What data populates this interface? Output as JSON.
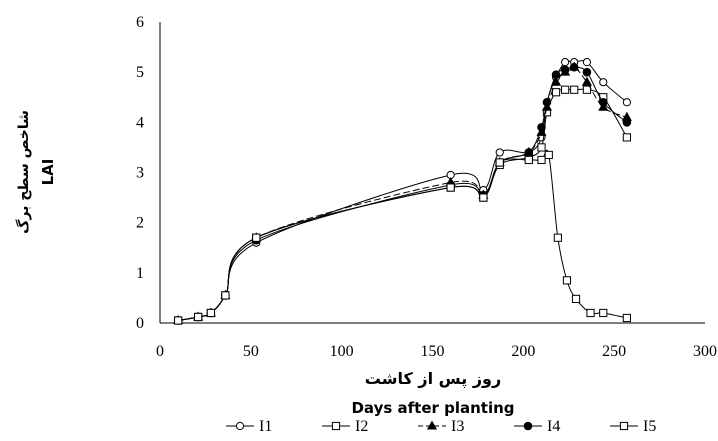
{
  "chart_data": {
    "type": "line",
    "xlabel": "روز پس از کاشت",
    "xlabel_en": "Days after planting",
    "ylabel": "شاخص سطح برگ",
    "ylabel_en": "LAI",
    "xlim": [
      0,
      300
    ],
    "ylim": [
      0,
      6
    ],
    "xticks": [
      "0",
      "50",
      "100",
      "150",
      "200",
      "250",
      "300"
    ],
    "yticks": [
      "0",
      "1",
      "2",
      "3",
      "4",
      "5",
      "6"
    ],
    "grid": false,
    "legend_position": "bottom",
    "series": [
      {
        "name": "I1",
        "marker": "circle-open",
        "dash": "solid",
        "x": [
          10,
          21,
          28,
          36,
          53,
          160,
          178,
          187,
          203,
          210,
          213,
          218,
          223,
          228,
          235,
          244,
          257
        ],
        "y": [
          0.05,
          0.12,
          0.2,
          0.55,
          1.6,
          2.95,
          2.65,
          3.4,
          3.4,
          3.7,
          4.4,
          4.9,
          5.2,
          5.2,
          5.2,
          4.8,
          4.4
        ]
      },
      {
        "name": "I2",
        "marker": "square-open",
        "dash": "solid",
        "x": [
          10,
          21,
          28,
          36,
          53,
          160,
          178,
          187,
          203,
          210,
          213,
          218,
          223,
          228,
          235,
          244,
          257
        ],
        "y": [
          0.05,
          0.12,
          0.2,
          0.55,
          1.7,
          2.7,
          2.5,
          3.15,
          3.3,
          3.5,
          4.2,
          4.6,
          4.65,
          4.65,
          4.65,
          4.5,
          3.7
        ]
      },
      {
        "name": "I3",
        "marker": "triangle-filled",
        "dash": "dashed",
        "x": [
          10,
          21,
          28,
          36,
          53,
          160,
          178,
          187,
          203,
          210,
          213,
          218,
          223,
          228,
          235,
          244,
          257
        ],
        "y": [
          0.05,
          0.12,
          0.2,
          0.55,
          1.7,
          2.8,
          2.55,
          3.2,
          3.4,
          3.8,
          4.3,
          4.8,
          5.0,
          5.1,
          4.8,
          4.3,
          4.1
        ]
      },
      {
        "name": "I4",
        "marker": "circle-filled",
        "dash": "solid",
        "x": [
          10,
          21,
          28,
          36,
          53,
          160,
          178,
          187,
          203,
          210,
          213,
          218,
          223,
          228,
          235,
          244,
          257
        ],
        "y": [
          0.05,
          0.12,
          0.2,
          0.55,
          1.65,
          2.75,
          2.55,
          3.2,
          3.4,
          3.9,
          4.4,
          4.95,
          5.05,
          5.1,
          5.0,
          4.4,
          4.0
        ]
      },
      {
        "name": "I5",
        "marker": "square-open",
        "dash": "solid",
        "x": [
          10,
          21,
          28,
          36,
          53,
          160,
          178,
          187,
          203,
          210,
          214,
          219,
          224,
          229,
          237,
          244,
          257
        ],
        "y": [
          0.05,
          0.12,
          0.2,
          0.55,
          1.7,
          2.7,
          2.5,
          3.2,
          3.25,
          3.25,
          3.35,
          1.7,
          0.85,
          0.48,
          0.2,
          0.2,
          0.1
        ]
      }
    ]
  }
}
